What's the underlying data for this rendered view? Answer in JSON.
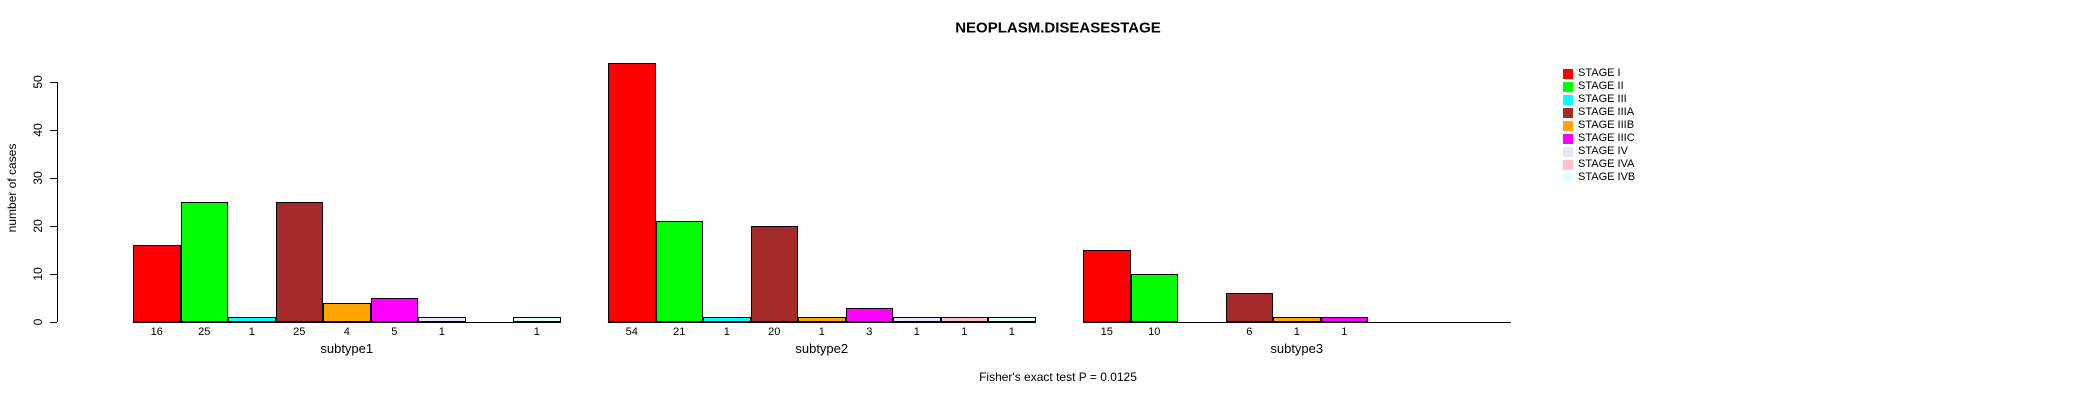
{
  "chart_data": {
    "type": "bar",
    "title": "NEOPLASM.DISEASESTAGE",
    "ylabel": "number of cases",
    "xlabel": "",
    "annotation": "Fisher's exact test P = 0.0125",
    "ylim": [
      0,
      55
    ],
    "yticks": [
      0,
      10,
      20,
      30,
      40,
      50
    ],
    "grid": "off",
    "legend_position": "right",
    "categories": [
      "STAGE I",
      "STAGE II",
      "STAGE III",
      "STAGE IIIA",
      "STAGE IIIB",
      "STAGE IIIC",
      "STAGE IV",
      "STAGE IVA",
      "STAGE IVB"
    ],
    "colors": [
      "#FF0000",
      "#00FF00",
      "#00FFFF",
      "#A52A2A",
      "#FFA500",
      "#FF00FF",
      "#E6E6FA",
      "#FFC0CB",
      "#E0FFFF"
    ],
    "groups": [
      {
        "name": "subtype1",
        "values": [
          16,
          25,
          1,
          25,
          4,
          5,
          1,
          null,
          1
        ]
      },
      {
        "name": "subtype2",
        "values": [
          54,
          21,
          1,
          20,
          1,
          3,
          1,
          1,
          1
        ]
      },
      {
        "name": "subtype3",
        "values": [
          15,
          10,
          null,
          6,
          1,
          1,
          null,
          null,
          null
        ]
      }
    ]
  }
}
